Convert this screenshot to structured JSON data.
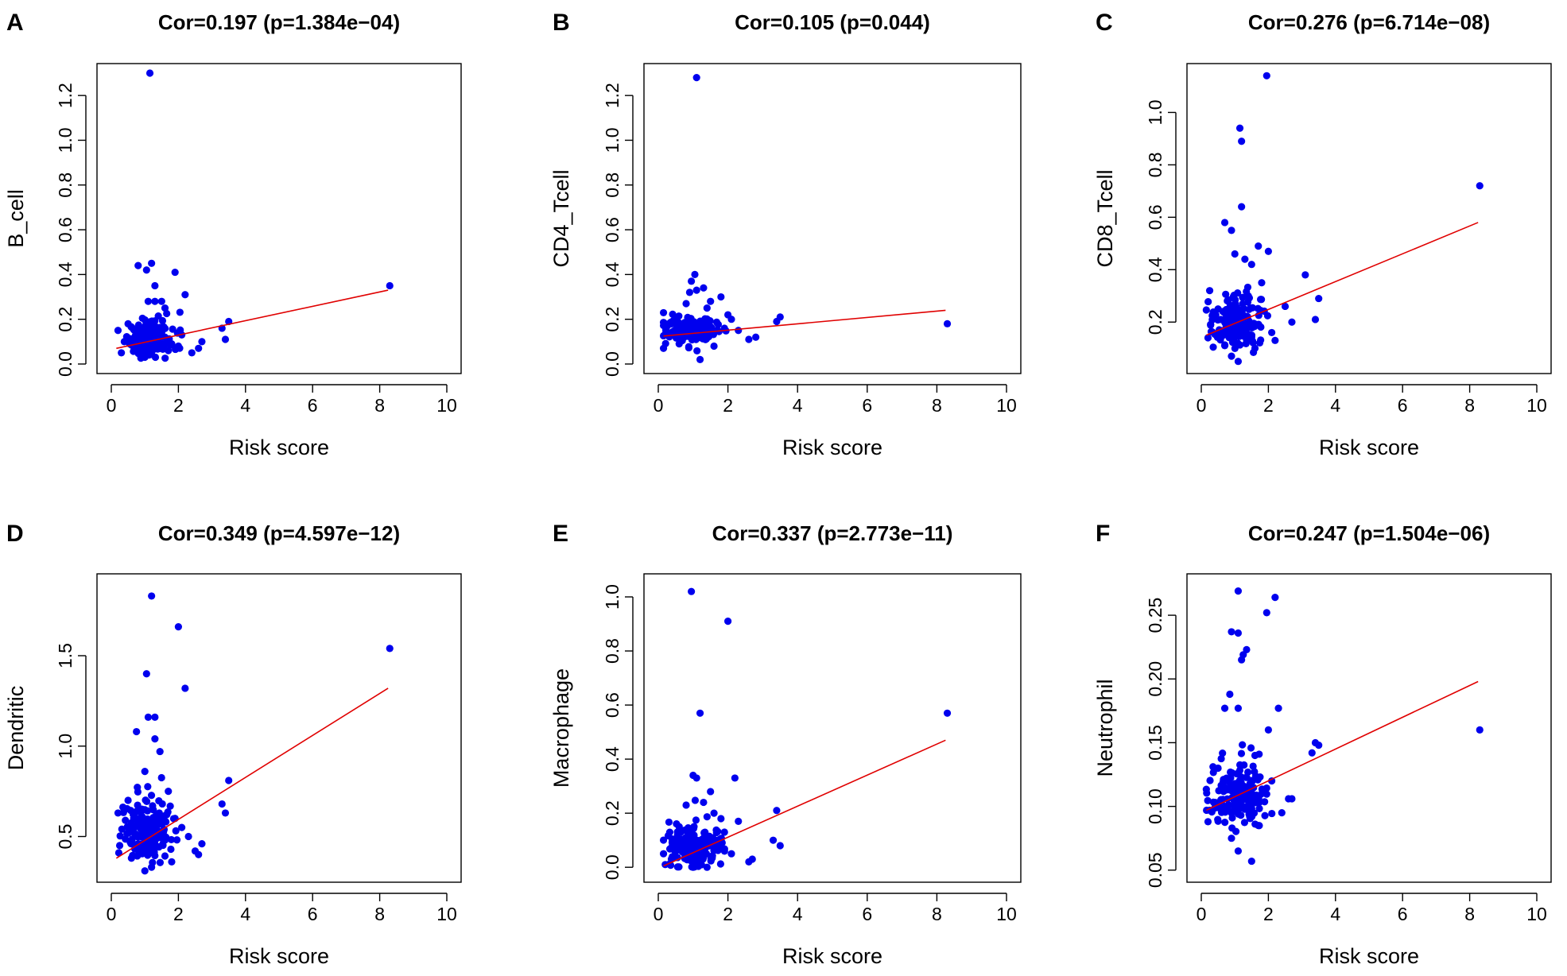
{
  "chart_data": [
    {
      "type": "scatter",
      "panel_letter": "A",
      "title": "Cor=0.197 (p=1.384e−04)",
      "xlabel": "Risk score",
      "ylabel": "B_cell",
      "xlim": [
        0,
        10
      ],
      "ylim": [
        0,
        1.3
      ],
      "xticks": [
        0,
        2,
        4,
        6,
        8,
        10
      ],
      "yticks": [
        0.0,
        0.2,
        0.4,
        0.6,
        0.8,
        1.0,
        1.2
      ],
      "ytick_labels": [
        "0.0",
        "0.2",
        "0.4",
        "0.6",
        "0.8",
        "1.0",
        "1.2"
      ],
      "fit_line": {
        "x": [
          0.15,
          8.25
        ],
        "y": [
          0.07,
          0.33
        ]
      },
      "cluster": {
        "cx": 1.1,
        "cy": 0.11,
        "sx": 0.35,
        "sy": 0.05,
        "n": 150
      },
      "points": [
        [
          1.15,
          1.3
        ],
        [
          8.3,
          0.35
        ],
        [
          0.8,
          0.44
        ],
        [
          1.2,
          0.45
        ],
        [
          1.05,
          0.42
        ],
        [
          1.9,
          0.41
        ],
        [
          1.3,
          0.35
        ],
        [
          2.2,
          0.31
        ],
        [
          1.3,
          0.28
        ],
        [
          1.1,
          0.28
        ],
        [
          1.6,
          0.25
        ],
        [
          1.5,
          0.28
        ],
        [
          3.5,
          0.19
        ],
        [
          3.3,
          0.16
        ],
        [
          3.4,
          0.11
        ],
        [
          2.7,
          0.1
        ],
        [
          2.6,
          0.07
        ],
        [
          2.4,
          0.05
        ],
        [
          0.2,
          0.15
        ],
        [
          0.3,
          0.05
        ],
        [
          1.0,
          0.03
        ],
        [
          0.9,
          0.05
        ],
        [
          1.7,
          0.06
        ],
        [
          2.0,
          0.08
        ],
        [
          2.1,
          0.13
        ],
        [
          0.5,
          0.18
        ],
        [
          1.6,
          0.12
        ],
        [
          0.7,
          0.1
        ],
        [
          1.4,
          0.16
        ],
        [
          1.8,
          0.09
        ]
      ]
    },
    {
      "type": "scatter",
      "panel_letter": "B",
      "title": "Cor=0.105 (p=0.044)",
      "xlabel": "Risk score",
      "ylabel": "CD4_Tcell",
      "xlim": [
        0,
        10
      ],
      "ylim": [
        0,
        1.3
      ],
      "xticks": [
        0,
        2,
        4,
        6,
        8,
        10
      ],
      "yticks": [
        0.0,
        0.2,
        0.4,
        0.6,
        0.8,
        1.0,
        1.2
      ],
      "ytick_labels": [
        "0.0",
        "0.2",
        "0.4",
        "0.6",
        "0.8",
        "1.0",
        "1.2"
      ],
      "fit_line": {
        "x": [
          0.15,
          8.25
        ],
        "y": [
          0.125,
          0.24
        ]
      },
      "cluster": {
        "cx": 1.0,
        "cy": 0.145,
        "sx": 0.38,
        "sy": 0.035,
        "n": 150
      },
      "points": [
        [
          1.1,
          1.28
        ],
        [
          8.3,
          0.18
        ],
        [
          1.05,
          0.4
        ],
        [
          0.95,
          0.37
        ],
        [
          0.9,
          0.32
        ],
        [
          1.1,
          0.33
        ],
        [
          1.3,
          0.34
        ],
        [
          1.8,
          0.3
        ],
        [
          1.5,
          0.28
        ],
        [
          3.5,
          0.21
        ],
        [
          3.4,
          0.19
        ],
        [
          2.0,
          0.22
        ],
        [
          2.6,
          0.11
        ],
        [
          2.8,
          0.12
        ],
        [
          1.2,
          0.02
        ],
        [
          0.15,
          0.07
        ],
        [
          0.2,
          0.13
        ],
        [
          1.9,
          0.16
        ],
        [
          2.3,
          0.15
        ],
        [
          0.6,
          0.09
        ],
        [
          1.4,
          0.25
        ],
        [
          0.8,
          0.27
        ],
        [
          2.1,
          0.2
        ],
        [
          1.6,
          0.08
        ],
        [
          0.4,
          0.19
        ]
      ]
    },
    {
      "type": "scatter",
      "panel_letter": "C",
      "title": "Cor=0.276 (p=6.714e−08)",
      "xlabel": "Risk score",
      "ylabel": "CD8_Tcell",
      "xlim": [
        0,
        10
      ],
      "ylim": [
        0.04,
        1.15
      ],
      "xticks": [
        0,
        2,
        4,
        6,
        8,
        10
      ],
      "yticks": [
        0.2,
        0.4,
        0.6,
        0.8,
        1.0
      ],
      "ytick_labels": [
        "0.2",
        "0.4",
        "0.6",
        "0.8",
        "1.0"
      ],
      "fit_line": {
        "x": [
          0.15,
          8.25
        ],
        "y": [
          0.15,
          0.58
        ]
      },
      "cluster": {
        "cx": 1.05,
        "cy": 0.19,
        "sx": 0.38,
        "sy": 0.06,
        "n": 160
      },
      "points": [
        [
          1.95,
          1.14
        ],
        [
          1.15,
          0.94
        ],
        [
          1.2,
          0.89
        ],
        [
          8.3,
          0.72
        ],
        [
          1.2,
          0.64
        ],
        [
          0.7,
          0.58
        ],
        [
          0.9,
          0.55
        ],
        [
          1.7,
          0.49
        ],
        [
          2.0,
          0.47
        ],
        [
          1.0,
          0.46
        ],
        [
          1.3,
          0.44
        ],
        [
          1.5,
          0.42
        ],
        [
          3.1,
          0.38
        ],
        [
          3.5,
          0.29
        ],
        [
          3.4,
          0.21
        ],
        [
          2.7,
          0.2
        ],
        [
          2.5,
          0.26
        ],
        [
          0.25,
          0.32
        ],
        [
          0.2,
          0.14
        ],
        [
          1.1,
          0.05
        ],
        [
          0.9,
          0.07
        ],
        [
          1.6,
          0.1
        ],
        [
          2.2,
          0.13
        ],
        [
          1.8,
          0.35
        ],
        [
          1.4,
          0.3
        ],
        [
          0.5,
          0.25
        ],
        [
          2.1,
          0.16
        ],
        [
          0.7,
          0.11
        ]
      ]
    },
    {
      "type": "scatter",
      "panel_letter": "D",
      "title": "Cor=0.349 (p=4.597e−12)",
      "xlabel": "Risk score",
      "ylabel": "Dendritic",
      "xlim": [
        0,
        10
      ],
      "ylim": [
        0.3,
        1.9
      ],
      "xticks": [
        0,
        2,
        4,
        6,
        8,
        10
      ],
      "yticks": [
        0.5,
        1.0,
        1.5
      ],
      "ytick_labels": [
        "0.5",
        "1.0",
        "1.5"
      ],
      "fit_line": {
        "x": [
          0.15,
          8.25
        ],
        "y": [
          0.38,
          1.32
        ]
      },
      "cluster": {
        "cx": 1.05,
        "cy": 0.52,
        "sx": 0.38,
        "sy": 0.1,
        "n": 170
      },
      "points": [
        [
          1.2,
          1.83
        ],
        [
          2.0,
          1.66
        ],
        [
          8.3,
          1.54
        ],
        [
          1.05,
          1.4
        ],
        [
          2.2,
          1.32
        ],
        [
          1.1,
          1.16
        ],
        [
          1.3,
          1.16
        ],
        [
          0.75,
          1.08
        ],
        [
          1.3,
          1.04
        ],
        [
          1.45,
          0.97
        ],
        [
          1.0,
          0.86
        ],
        [
          3.5,
          0.81
        ],
        [
          3.3,
          0.68
        ],
        [
          3.4,
          0.63
        ],
        [
          2.7,
          0.46
        ],
        [
          2.5,
          0.42
        ],
        [
          2.6,
          0.4
        ],
        [
          0.2,
          0.63
        ],
        [
          0.25,
          0.45
        ],
        [
          1.0,
          0.31
        ],
        [
          1.2,
          0.33
        ],
        [
          1.9,
          0.6
        ],
        [
          2.1,
          0.55
        ],
        [
          1.7,
          0.75
        ],
        [
          0.5,
          0.7
        ],
        [
          0.6,
          0.38
        ],
        [
          1.6,
          0.48
        ],
        [
          2.3,
          0.5
        ],
        [
          1.8,
          0.36
        ]
      ]
    },
    {
      "type": "scatter",
      "panel_letter": "E",
      "title": "Cor=0.337 (p=2.773e−11)",
      "xlabel": "Risk score",
      "ylabel": "Macrophage",
      "xlim": [
        0,
        10
      ],
      "ylim": [
        -0.02,
        1.05
      ],
      "xticks": [
        0,
        2,
        4,
        6,
        8,
        10
      ],
      "yticks": [
        0.0,
        0.2,
        0.4,
        0.6,
        0.8,
        1.0
      ],
      "ytick_labels": [
        "0.0",
        "0.2",
        "0.4",
        "0.6",
        "0.8",
        "1.0"
      ],
      "fit_line": {
        "x": [
          0.15,
          8.25
        ],
        "y": [
          0.005,
          0.47
        ]
      },
      "cluster": {
        "cx": 1.05,
        "cy": 0.07,
        "sx": 0.4,
        "sy": 0.05,
        "n": 170
      },
      "points": [
        [
          0.95,
          1.02
        ],
        [
          2.0,
          0.91
        ],
        [
          1.2,
          0.57
        ],
        [
          8.3,
          0.57
        ],
        [
          1.0,
          0.34
        ],
        [
          1.1,
          0.33
        ],
        [
          2.2,
          0.33
        ],
        [
          1.5,
          0.28
        ],
        [
          1.3,
          0.24
        ],
        [
          3.4,
          0.21
        ],
        [
          3.3,
          0.1
        ],
        [
          3.5,
          0.08
        ],
        [
          2.7,
          0.03
        ],
        [
          2.6,
          0.02
        ],
        [
          0.15,
          0.05
        ],
        [
          0.2,
          0.01
        ],
        [
          1.8,
          0.18
        ],
        [
          2.3,
          0.17
        ],
        [
          1.9,
          0.13
        ],
        [
          0.6,
          0.15
        ],
        [
          0.8,
          0.23
        ],
        [
          1.6,
          0.2
        ],
        [
          1.4,
          0.0
        ],
        [
          1.0,
          0.0
        ],
        [
          2.1,
          0.05
        ],
        [
          1.7,
          0.1
        ]
      ]
    },
    {
      "type": "scatter",
      "panel_letter": "F",
      "title": "Cor=0.247 (p=1.504e−06)",
      "xlabel": "Risk score",
      "ylabel": "Neutrophil",
      "xlim": [
        0,
        10
      ],
      "ylim": [
        0.048,
        0.275
      ],
      "xticks": [
        0,
        2,
        4,
        6,
        8,
        10
      ],
      "yticks": [
        0.05,
        0.1,
        0.15,
        0.2,
        0.25
      ],
      "ytick_labels": [
        "0.05",
        "0.10",
        "0.15",
        "0.20",
        "0.25"
      ],
      "fit_line": {
        "x": [
          0.15,
          8.25
        ],
        "y": [
          0.097,
          0.198
        ]
      },
      "cluster": {
        "cx": 1.05,
        "cy": 0.107,
        "sx": 0.38,
        "sy": 0.014,
        "n": 170
      },
      "points": [
        [
          1.1,
          0.269
        ],
        [
          2.2,
          0.264
        ],
        [
          1.95,
          0.252
        ],
        [
          1.35,
          0.223
        ],
        [
          1.25,
          0.219
        ],
        [
          0.9,
          0.237
        ],
        [
          1.1,
          0.236
        ],
        [
          1.2,
          0.215
        ],
        [
          0.85,
          0.188
        ],
        [
          0.7,
          0.177
        ],
        [
          1.1,
          0.177
        ],
        [
          2.3,
          0.177
        ],
        [
          2.0,
          0.16
        ],
        [
          8.3,
          0.16
        ],
        [
          3.4,
          0.15
        ],
        [
          3.5,
          0.148
        ],
        [
          3.3,
          0.142
        ],
        [
          2.6,
          0.106
        ],
        [
          2.7,
          0.106
        ],
        [
          2.4,
          0.095
        ],
        [
          0.2,
          0.088
        ],
        [
          0.25,
          0.097
        ],
        [
          1.5,
          0.057
        ],
        [
          1.1,
          0.065
        ],
        [
          0.9,
          0.075
        ],
        [
          1.7,
          0.085
        ],
        [
          2.1,
          0.12
        ],
        [
          0.5,
          0.13
        ],
        [
          1.6,
          0.14
        ],
        [
          1.8,
          0.11
        ]
      ]
    }
  ]
}
